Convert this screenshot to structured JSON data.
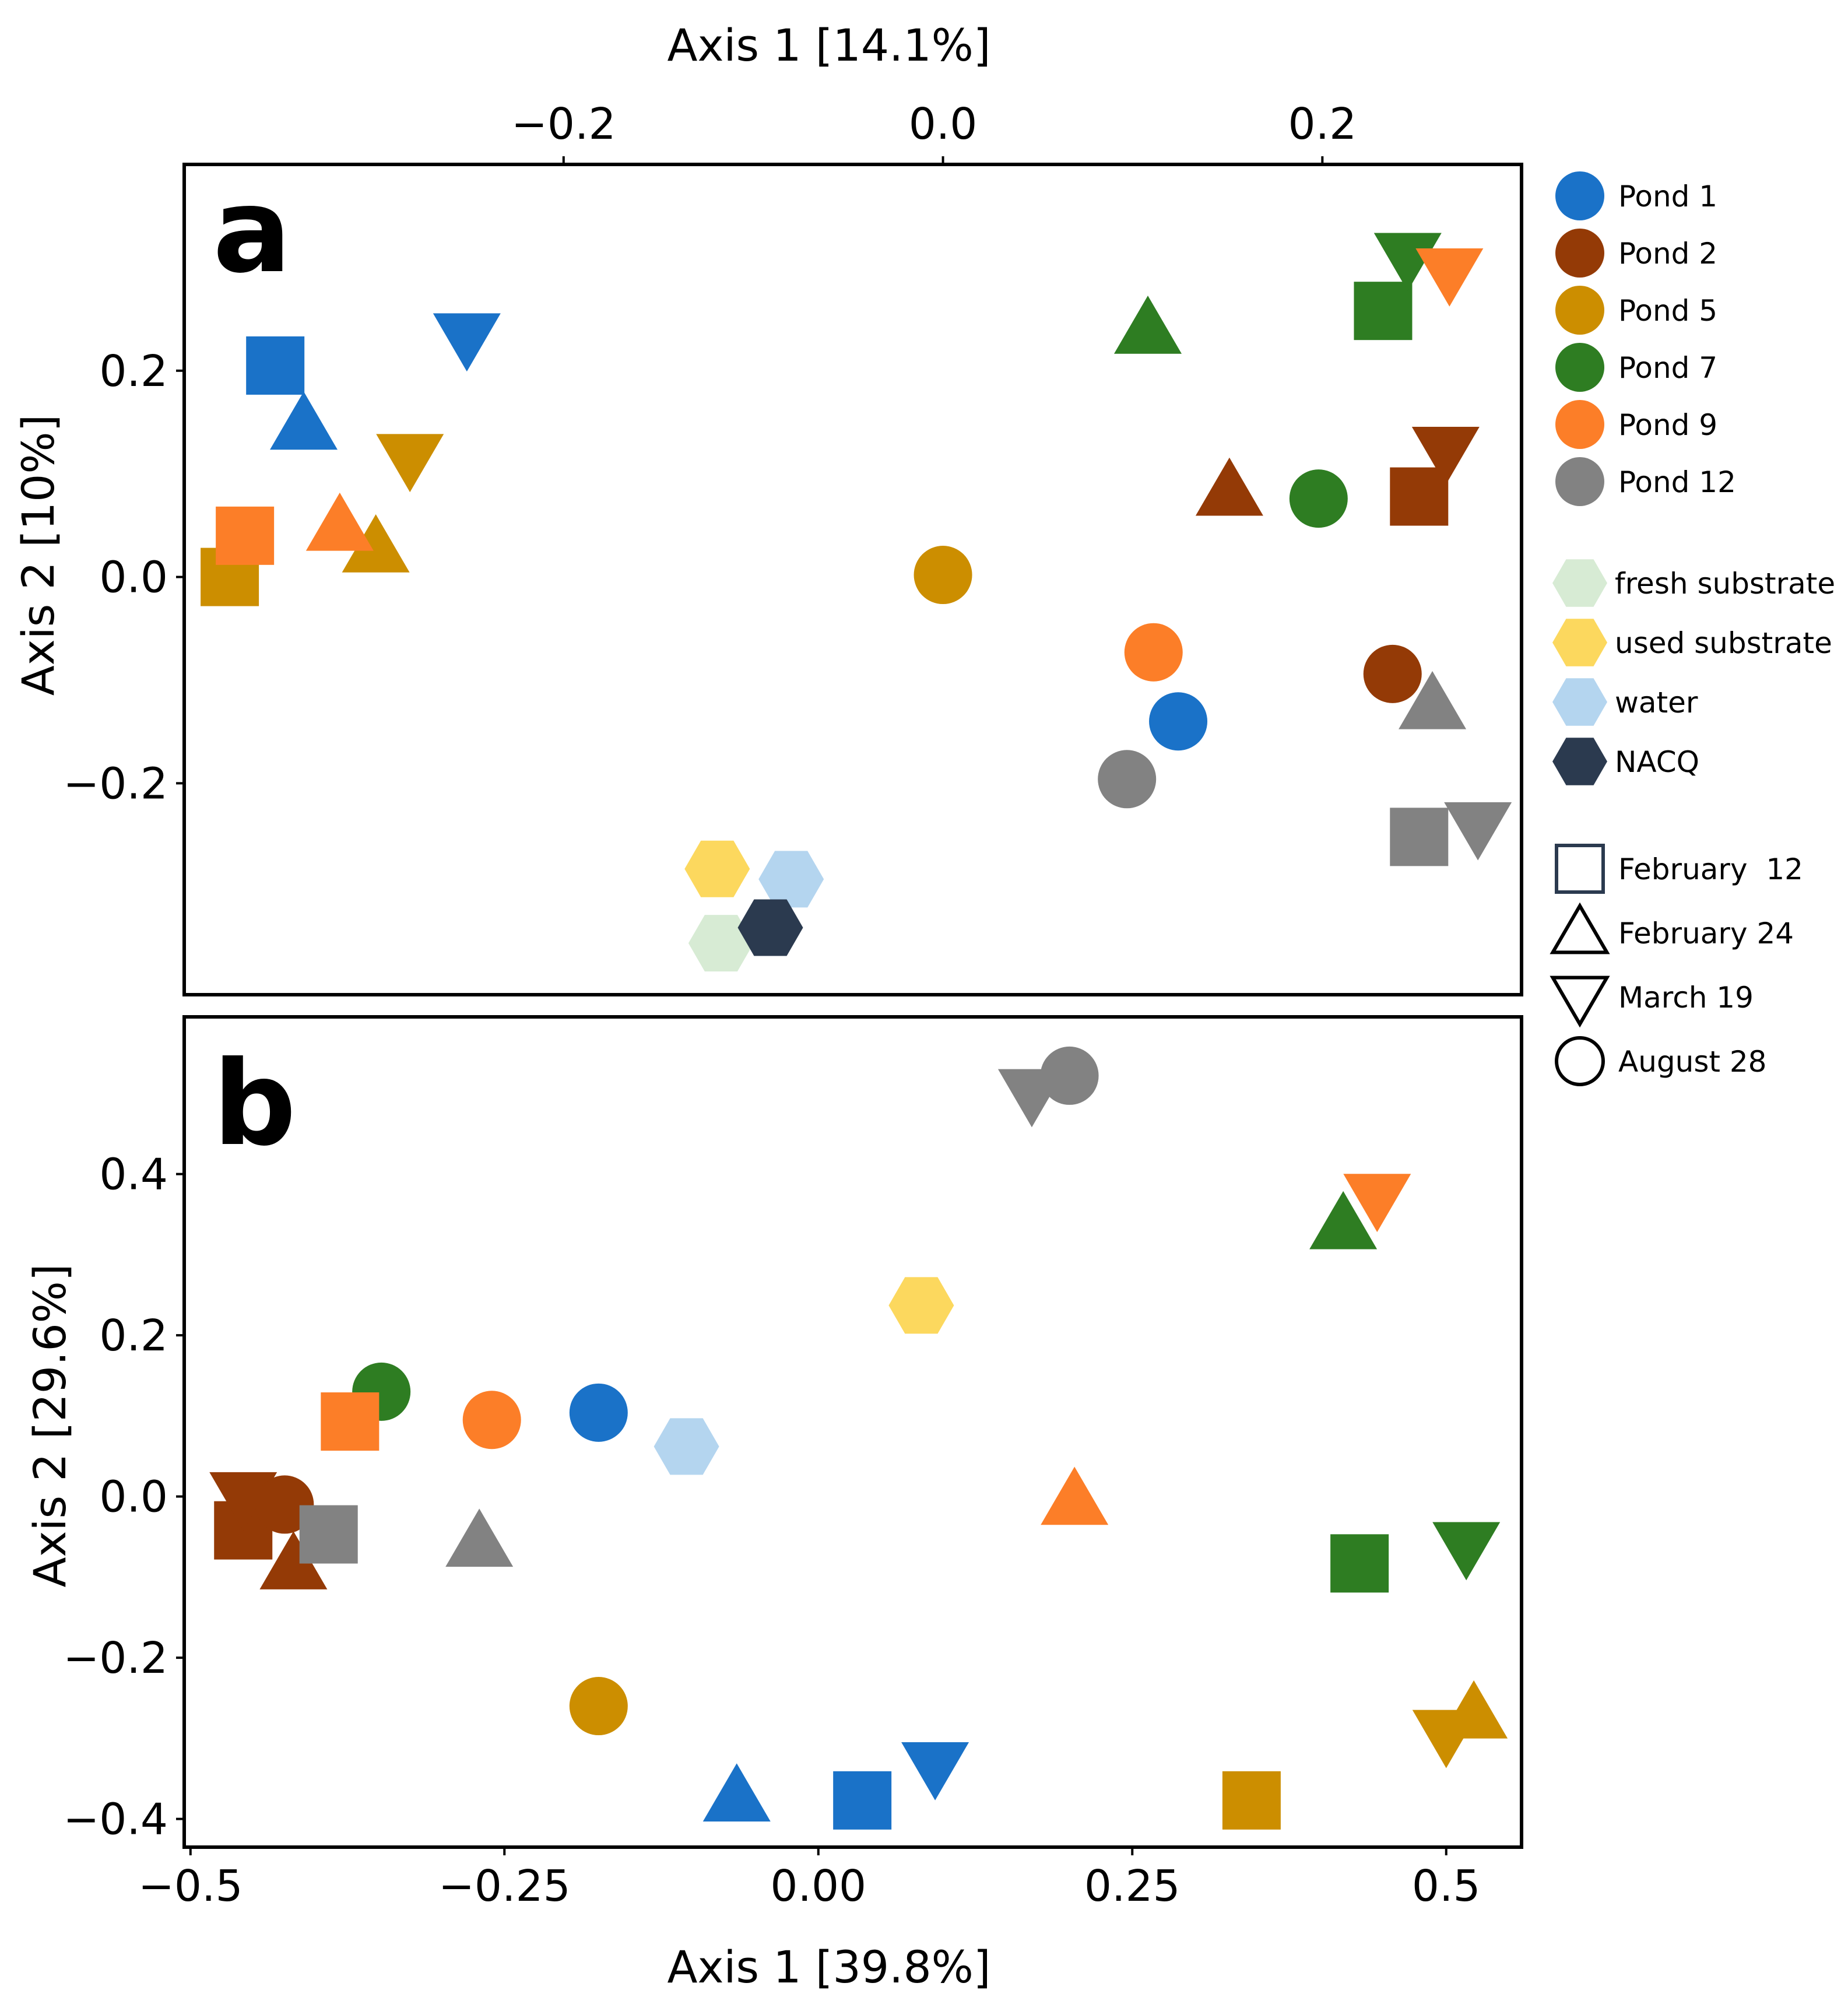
{
  "colors": {
    "pond_1": "#1a72c8",
    "pond_2": "#943a06",
    "pond_5": "#cc8e00",
    "pond_7": "#2e7d22",
    "pond_9": "#fc7e28",
    "pond_12": "#828282",
    "fresh_substrate": "#d7ebd4",
    "used_substrate": "#fcd85e",
    "water": "#b4d5ef",
    "nacq": "#2b3a4f"
  },
  "legend": {
    "ponds": [
      {
        "label": "Pond 1",
        "color": "pond_1"
      },
      {
        "label": "Pond 2",
        "color": "pond_2"
      },
      {
        "label": "Pond 5",
        "color": "pond_5"
      },
      {
        "label": "Pond 7",
        "color": "pond_7"
      },
      {
        "label": "Pond 9",
        "color": "pond_9"
      },
      {
        "label": "Pond 12",
        "color": "pond_12"
      }
    ],
    "sample_types": [
      {
        "label": "fresh substrate",
        "color": "fresh_substrate"
      },
      {
        "label": "used substrate",
        "color": "used_substrate"
      },
      {
        "label": "water",
        "color": "water"
      },
      {
        "label": "NACQ",
        "color": "nacq"
      }
    ],
    "dates": [
      {
        "label": "February  12",
        "marker": "square"
      },
      {
        "label": "February 24",
        "marker": "triangle-up"
      },
      {
        "label": "March 19",
        "marker": "triangle-down"
      },
      {
        "label": "August 28",
        "marker": "circle"
      }
    ]
  },
  "chart_data": [
    {
      "panel": "a",
      "type": "scatter",
      "xlabel": "Axis 1 [14.1%]",
      "ylabel": "Axis 2 [10%]",
      "xaxis_position": "top",
      "xlim": [
        -0.4,
        0.305
      ],
      "ylim": [
        -0.405,
        0.4
      ],
      "xticks": [
        {
          "value": -0.2,
          "label": "−0.2"
        },
        {
          "value": 0.0,
          "label": "0.0"
        },
        {
          "value": 0.2,
          "label": "0.2"
        }
      ],
      "yticks": [
        {
          "value": 0.2,
          "label": "0.2"
        },
        {
          "value": 0.0,
          "label": "0.0"
        },
        {
          "value": -0.2,
          "label": "−0.2"
        }
      ],
      "grid": false,
      "points": [
        {
          "x": -0.352,
          "y": 0.205,
          "color": "pond_1",
          "marker": "square"
        },
        {
          "x": -0.337,
          "y": 0.147,
          "color": "pond_1",
          "marker": "triangle-up"
        },
        {
          "x": -0.251,
          "y": 0.232,
          "color": "pond_1",
          "marker": "triangle-down"
        },
        {
          "x": 0.124,
          "y": -0.14,
          "color": "pond_1",
          "marker": "circle"
        },
        {
          "x": 0.251,
          "y": 0.078,
          "color": "pond_2",
          "marker": "square"
        },
        {
          "x": 0.151,
          "y": 0.083,
          "color": "pond_2",
          "marker": "triangle-up"
        },
        {
          "x": 0.265,
          "y": 0.122,
          "color": "pond_2",
          "marker": "triangle-down"
        },
        {
          "x": 0.237,
          "y": -0.094,
          "color": "pond_2",
          "marker": "circle"
        },
        {
          "x": -0.376,
          "y": 0.0,
          "color": "pond_5",
          "marker": "square"
        },
        {
          "x": -0.299,
          "y": 0.028,
          "color": "pond_5",
          "marker": "triangle-up"
        },
        {
          "x": -0.281,
          "y": 0.115,
          "color": "pond_5",
          "marker": "triangle-down"
        },
        {
          "x": 0.0,
          "y": 0.002,
          "color": "pond_5",
          "marker": "circle"
        },
        {
          "x": 0.232,
          "y": 0.258,
          "color": "pond_7",
          "marker": "square"
        },
        {
          "x": 0.108,
          "y": 0.24,
          "color": "pond_7",
          "marker": "triangle-up"
        },
        {
          "x": 0.245,
          "y": 0.31,
          "color": "pond_7",
          "marker": "triangle-down"
        },
        {
          "x": 0.198,
          "y": 0.076,
          "color": "pond_7",
          "marker": "circle"
        },
        {
          "x": -0.368,
          "y": 0.04,
          "color": "pond_9",
          "marker": "square"
        },
        {
          "x": -0.318,
          "y": 0.049,
          "color": "pond_9",
          "marker": "triangle-up"
        },
        {
          "x": 0.267,
          "y": 0.295,
          "color": "pond_9",
          "marker": "triangle-down"
        },
        {
          "x": 0.111,
          "y": -0.073,
          "color": "pond_9",
          "marker": "circle"
        },
        {
          "x": 0.251,
          "y": -0.252,
          "color": "pond_12",
          "marker": "square"
        },
        {
          "x": 0.258,
          "y": -0.124,
          "color": "pond_12",
          "marker": "triangle-up"
        },
        {
          "x": 0.282,
          "y": -0.242,
          "color": "pond_12",
          "marker": "triangle-down"
        },
        {
          "x": 0.097,
          "y": -0.196,
          "color": "pond_12",
          "marker": "circle"
        },
        {
          "x": -0.117,
          "y": -0.355,
          "color": "fresh_substrate",
          "marker": "hexagon"
        },
        {
          "x": -0.119,
          "y": -0.283,
          "color": "used_substrate",
          "marker": "hexagon"
        },
        {
          "x": -0.08,
          "y": -0.293,
          "color": "water",
          "marker": "hexagon"
        },
        {
          "x": -0.091,
          "y": -0.34,
          "color": "nacq",
          "marker": "hexagon"
        }
      ]
    },
    {
      "panel": "b",
      "type": "scatter",
      "xlabel": "Axis 1 [39.8%]",
      "ylabel": "Axis 2 [29.6%]",
      "xaxis_position": "bottom",
      "xlim": [
        -0.505,
        0.56
      ],
      "ylim": [
        -0.435,
        0.595
      ],
      "xticks": [
        {
          "value": -0.5,
          "label": "−0.5"
        },
        {
          "value": -0.25,
          "label": "−0.25"
        },
        {
          "value": 0.0,
          "label": "0.00"
        },
        {
          "value": 0.25,
          "label": "0.25"
        },
        {
          "value": 0.5,
          "label": "0.5"
        }
      ],
      "yticks": [
        {
          "value": 0.4,
          "label": "0.4"
        },
        {
          "value": 0.2,
          "label": "0.2"
        },
        {
          "value": 0.0,
          "label": "0.0"
        },
        {
          "value": -0.2,
          "label": "−0.2"
        },
        {
          "value": -0.4,
          "label": "−0.4"
        }
      ],
      "grid": false,
      "points": [
        {
          "x": 0.035,
          "y": -0.377,
          "color": "pond_1",
          "marker": "square"
        },
        {
          "x": -0.065,
          "y": -0.373,
          "color": "pond_1",
          "marker": "triangle-up"
        },
        {
          "x": 0.093,
          "y": -0.335,
          "color": "pond_1",
          "marker": "triangle-down"
        },
        {
          "x": -0.175,
          "y": 0.104,
          "color": "pond_1",
          "marker": "circle"
        },
        {
          "x": -0.458,
          "y": -0.042,
          "color": "pond_2",
          "marker": "square"
        },
        {
          "x": -0.418,
          "y": -0.085,
          "color": "pond_2",
          "marker": "triangle-up"
        },
        {
          "x": -0.458,
          "y": 0.0,
          "color": "pond_2",
          "marker": "triangle-down"
        },
        {
          "x": -0.425,
          "y": -0.01,
          "color": "pond_2",
          "marker": "circle"
        },
        {
          "x": 0.345,
          "y": -0.377,
          "color": "pond_5",
          "marker": "square"
        },
        {
          "x": 0.522,
          "y": -0.27,
          "color": "pond_5",
          "marker": "triangle-up"
        },
        {
          "x": 0.5,
          "y": -0.295,
          "color": "pond_5",
          "marker": "triangle-down"
        },
        {
          "x": -0.175,
          "y": -0.26,
          "color": "pond_5",
          "marker": "circle"
        },
        {
          "x": 0.431,
          "y": -0.083,
          "color": "pond_7",
          "marker": "square"
        },
        {
          "x": 0.418,
          "y": 0.337,
          "color": "pond_7",
          "marker": "triangle-up"
        },
        {
          "x": 0.516,
          "y": -0.062,
          "color": "pond_7",
          "marker": "triangle-down"
        },
        {
          "x": -0.348,
          "y": 0.13,
          "color": "pond_7",
          "marker": "circle"
        },
        {
          "x": -0.373,
          "y": 0.093,
          "color": "pond_9",
          "marker": "square"
        },
        {
          "x": 0.204,
          "y": -0.005,
          "color": "pond_9",
          "marker": "triangle-up"
        },
        {
          "x": 0.445,
          "y": 0.37,
          "color": "pond_9",
          "marker": "triangle-down"
        },
        {
          "x": -0.26,
          "y": 0.095,
          "color": "pond_9",
          "marker": "circle"
        },
        {
          "x": -0.39,
          "y": -0.047,
          "color": "pond_12",
          "marker": "square"
        },
        {
          "x": -0.27,
          "y": -0.057,
          "color": "pond_12",
          "marker": "triangle-up"
        },
        {
          "x": 0.17,
          "y": 0.5,
          "color": "pond_12",
          "marker": "triangle-down"
        },
        {
          "x": 0.2,
          "y": 0.522,
          "color": "pond_12",
          "marker": "circle"
        },
        {
          "x": 0.082,
          "y": 0.237,
          "color": "used_substrate",
          "marker": "hexagon"
        },
        {
          "x": -0.105,
          "y": 0.062,
          "color": "water",
          "marker": "hexagon"
        }
      ]
    }
  ],
  "panel_labels": {
    "a": "a",
    "b": "b"
  }
}
